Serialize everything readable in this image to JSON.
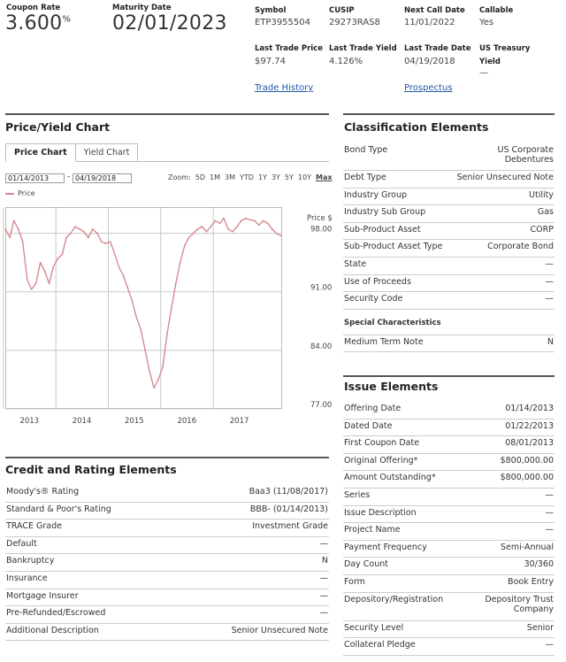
{
  "header": {
    "coupon_rate": {
      "label": "Coupon Rate",
      "value": "3.600",
      "suffix": "%"
    },
    "maturity_date": {
      "label": "Maturity Date",
      "value": "02/01/2023"
    },
    "symbol": {
      "label": "Symbol",
      "value": "ETP3955504"
    },
    "cusip": {
      "label": "CUSIP",
      "value": "29273RAS8"
    },
    "next_call_date": {
      "label": "Next Call Date",
      "value": "11/01/2022"
    },
    "callable": {
      "label": "Callable",
      "value": "Yes"
    },
    "last_trade_price": {
      "label": "Last Trade Price",
      "value": "$97.74"
    },
    "last_trade_yield": {
      "label": "Last Trade Yield",
      "value": "4.126%"
    },
    "last_trade_date": {
      "label": "Last Trade Date",
      "value": "04/19/2018"
    },
    "us_treasury_yield": {
      "label1": "US Treasury",
      "label2": "Yield",
      "value": "—"
    },
    "trade_history_link": "Trade History",
    "prospectus_link": "Prospectus"
  },
  "price_yield": {
    "title": "Price/Yield Chart",
    "tabs": [
      "Price Chart",
      "Yield Chart"
    ],
    "active_tab": 0,
    "from_date": "01/14/2013",
    "to_date": "04/19/2018",
    "date_sep": "-",
    "zoom_label": "Zoom:",
    "zoom_options": [
      "5D",
      "1M",
      "3M",
      "YTD",
      "1Y",
      "3Y",
      "5Y",
      "10Y",
      "Max"
    ],
    "legend_label": "Price",
    "series_color": "#d88a90"
  },
  "chart_data": {
    "type": "line",
    "title": "",
    "xlabel": "",
    "ylabel": "Price $",
    "ylim": [
      77,
      100.5
    ],
    "yticks": [
      "98.00",
      "91.00",
      "84.00",
      "77.00"
    ],
    "xticks": [
      "2013",
      "2014",
      "2015",
      "2016",
      "2017"
    ],
    "grid": true,
    "series": [
      {
        "name": "Price",
        "x": [
          "2013-01-14",
          "2013-02-15",
          "2013-03-15",
          "2013-04-15",
          "2013-05-15",
          "2013-06-15",
          "2013-07-15",
          "2013-08-15",
          "2013-09-15",
          "2013-10-15",
          "2013-11-15",
          "2013-12-15",
          "2014-01-15",
          "2014-02-15",
          "2014-03-15",
          "2014-04-15",
          "2014-05-15",
          "2014-06-15",
          "2014-07-15",
          "2014-08-15",
          "2014-09-15",
          "2014-10-15",
          "2014-11-15",
          "2014-12-15",
          "2015-01-15",
          "2015-02-15",
          "2015-03-15",
          "2015-04-15",
          "2015-05-15",
          "2015-06-15",
          "2015-07-15",
          "2015-08-15",
          "2015-09-15",
          "2015-10-15",
          "2015-11-15",
          "2015-12-15",
          "2016-01-15",
          "2016-02-15",
          "2016-03-15",
          "2016-04-15",
          "2016-05-15",
          "2016-06-15",
          "2016-07-15",
          "2016-08-15",
          "2016-09-15",
          "2016-10-15",
          "2016-11-15",
          "2016-12-15",
          "2017-01-15",
          "2017-02-15",
          "2017-03-15",
          "2017-04-15",
          "2017-05-15",
          "2017-06-15",
          "2017-07-15",
          "2017-08-15",
          "2017-09-15",
          "2017-10-15",
          "2017-11-15",
          "2017-12-15",
          "2018-01-15",
          "2018-02-15",
          "2018-03-15",
          "2018-04-19"
        ],
        "values": [
          98.5,
          97.5,
          99.5,
          98.5,
          97.0,
          92.5,
          91.3,
          92.0,
          94.5,
          93.5,
          92.0,
          94.0,
          95.0,
          95.5,
          97.5,
          98.0,
          98.8,
          98.5,
          98.2,
          97.5,
          98.5,
          98.0,
          97.0,
          96.8,
          97.0,
          95.5,
          94.0,
          93.0,
          91.5,
          90.0,
          88.0,
          86.5,
          84.0,
          81.5,
          79.5,
          80.5,
          82.0,
          86.0,
          89.0,
          92.0,
          94.5,
          96.5,
          97.5,
          98.0,
          98.5,
          98.8,
          98.2,
          98.8,
          99.5,
          99.2,
          99.8,
          98.5,
          98.2,
          98.8,
          99.5,
          99.8,
          99.6,
          99.5,
          99.0,
          99.5,
          99.2,
          98.5,
          98.0,
          97.7
        ]
      }
    ]
  },
  "classification": {
    "title": "Classification Elements",
    "rows": [
      {
        "k": "Bond Type",
        "v": "US Corporate Debentures"
      },
      {
        "k": "Debt Type",
        "v": "Senior Unsecured Note"
      },
      {
        "k": "Industry Group",
        "v": "Utility"
      },
      {
        "k": "Industry Sub Group",
        "v": "Gas"
      },
      {
        "k": "Sub-Product Asset",
        "v": "CORP"
      },
      {
        "k": "Sub-Product Asset Type",
        "v": "Corporate Bond"
      },
      {
        "k": "State",
        "v": "—"
      },
      {
        "k": "Use of Proceeds",
        "v": "—"
      },
      {
        "k": "Security Code",
        "v": "—"
      }
    ],
    "special_title": "Special Characteristics",
    "special_rows": [
      {
        "k": "Medium Term Note",
        "v": "N"
      }
    ]
  },
  "credit": {
    "title": "Credit and Rating Elements",
    "rows": [
      {
        "k": "Moody's® Rating",
        "v": "Baa3 (11/08/2017)"
      },
      {
        "k": "Standard & Poor's Rating",
        "v": "BBB- (01/14/2013)"
      },
      {
        "k": "TRACE Grade",
        "v": "Investment Grade"
      },
      {
        "k": "Default",
        "v": "—"
      },
      {
        "k": "Bankruptcy",
        "v": "N"
      },
      {
        "k": "Insurance",
        "v": "—"
      },
      {
        "k": "Mortgage Insurer",
        "v": "—"
      },
      {
        "k": "Pre-Refunded/Escrowed",
        "v": "—"
      },
      {
        "k": "Additional Description",
        "v": "Senior Unsecured Note"
      }
    ]
  },
  "issue": {
    "title": "Issue Elements",
    "rows": [
      {
        "k": "Offering Date",
        "v": "01/14/2013"
      },
      {
        "k": "Dated Date",
        "v": "01/22/2013"
      },
      {
        "k": "First Coupon Date",
        "v": "08/01/2013"
      },
      {
        "k": "Original Offering*",
        "v": "$800,000.00"
      },
      {
        "k": "Amount Outstanding*",
        "v": "$800,000.00"
      },
      {
        "k": "Series",
        "v": "—"
      },
      {
        "k": "Issue Description",
        "v": "—"
      },
      {
        "k": "Project Name",
        "v": "—"
      },
      {
        "k": "Payment Frequency",
        "v": "Semi-Annual"
      },
      {
        "k": "Day Count",
        "v": "30/360"
      },
      {
        "k": "Form",
        "v": "Book Entry"
      },
      {
        "k": "Depository/Registration",
        "v": "Depository Trust Company"
      },
      {
        "k": "Security Level",
        "v": "Senior"
      },
      {
        "k": "Collateral Pledge",
        "v": "—"
      }
    ]
  }
}
